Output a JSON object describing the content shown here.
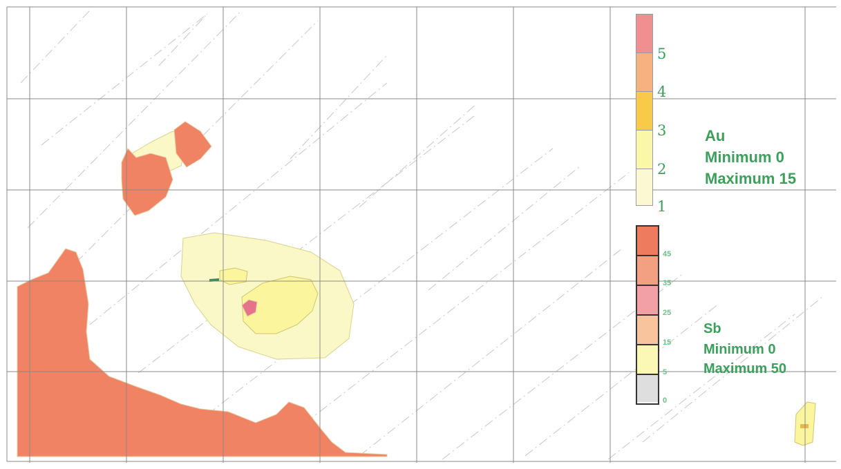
{
  "au_legend": {
    "title": "Au",
    "minimum": "Minimum 0",
    "maximum": "Maximum 15",
    "labels": [
      "5",
      "4",
      "3",
      "2",
      "1"
    ],
    "colors": [
      "#f08f8f",
      "#f7b080",
      "#f9c94a",
      "#fbf7a8",
      "#fcf8d2"
    ]
  },
  "sb_legend": {
    "title": "Sb",
    "minimum": "Minimum 0",
    "maximum": "Maximum 50",
    "labels": [
      "45",
      "35",
      "25",
      "15",
      "5",
      "0"
    ],
    "colors": [
      "#ef7b5f",
      "#f3a082",
      "#f2a0a6",
      "#f8c49e",
      "#fbf7b4",
      "#dedede"
    ]
  },
  "map": {
    "anomaly_color": "#ef8364",
    "halo_color": "#fbf8c8",
    "core_color": "#fbf59e",
    "grid_color": "#8a8a8a",
    "text_color": "#3aa05a"
  }
}
